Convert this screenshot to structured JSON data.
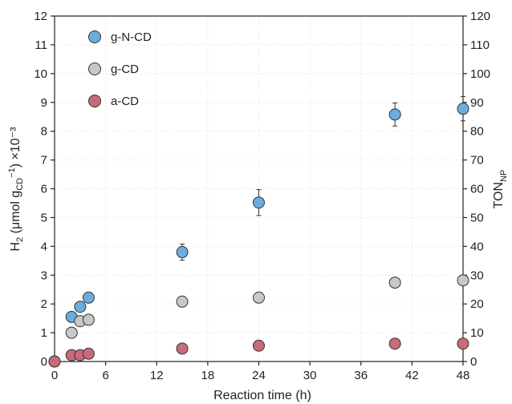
{
  "chart_data": {
    "type": "scatter",
    "xlabel": "Reaction time (h)",
    "ylabel_left": {
      "main": "H",
      "sub1": "2",
      "mid": " (μmol g",
      "sub2": "CD",
      "sup": "−1",
      "end": ") ×10⁻³"
    },
    "ylabel_right": {
      "main": "TON",
      "sub": "NP"
    },
    "xlim": [
      0,
      48
    ],
    "ylim": [
      0,
      12
    ],
    "ylim_right": [
      0,
      120
    ],
    "x_ticks": [
      0,
      6,
      12,
      18,
      24,
      30,
      36,
      42,
      48
    ],
    "y_ticks": [
      0,
      1,
      2,
      3,
      4,
      5,
      6,
      7,
      8,
      9,
      10,
      11,
      12
    ],
    "y_ticks_right": [
      0,
      10,
      20,
      30,
      40,
      50,
      60,
      70,
      80,
      90,
      100,
      110,
      120
    ],
    "grid": true,
    "legend_position": "top-left",
    "series": [
      {
        "name": "g-N-CD",
        "color": "#6aaedc",
        "x": [
          0,
          2,
          3,
          4,
          15,
          24,
          40,
          48
        ],
        "y": [
          0,
          1.55,
          1.9,
          2.22,
          3.8,
          5.52,
          8.58,
          8.78
        ],
        "err": [
          0,
          0,
          0,
          0,
          0.28,
          0.45,
          0.4,
          0.42
        ]
      },
      {
        "name": "g-CD",
        "color": "#c8c8c8",
        "x": [
          0,
          2,
          3,
          4,
          15,
          24,
          40,
          48
        ],
        "y": [
          0,
          1.0,
          1.4,
          1.45,
          2.08,
          2.22,
          2.74,
          2.82
        ],
        "err": [
          0,
          0.12,
          0,
          0,
          0,
          0,
          0,
          0
        ]
      },
      {
        "name": "a-CD",
        "color": "#c76b78",
        "x": [
          0,
          2,
          3,
          4,
          15,
          24,
          40,
          48
        ],
        "y": [
          0,
          0.22,
          0.22,
          0.27,
          0.45,
          0.55,
          0.62,
          0.62
        ],
        "err": [
          0,
          0,
          0,
          0,
          0,
          0,
          0,
          0
        ]
      }
    ]
  }
}
